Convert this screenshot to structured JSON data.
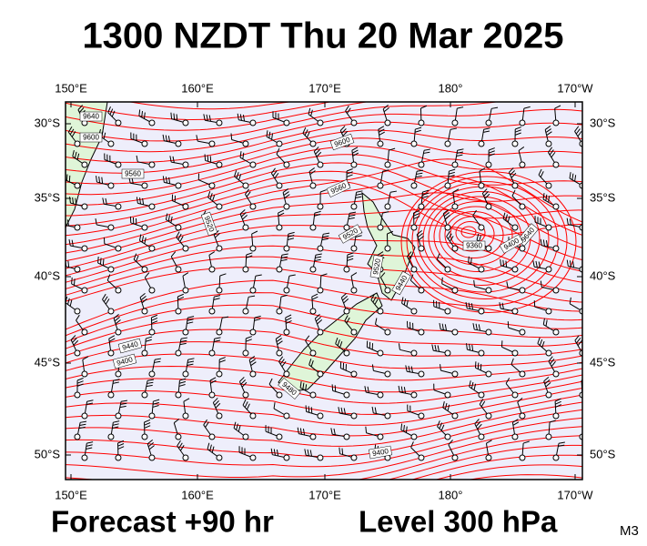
{
  "header": {
    "title": "1300 NZDT Thu 20 Mar 2025"
  },
  "map": {
    "top_labels": [
      "150°E",
      "160°E",
      "170°E",
      "180°",
      "170°W"
    ],
    "bottom_labels": [
      "150°E",
      "160°E",
      "170°E",
      "180°",
      "170°W"
    ],
    "left_labels": [
      "30°S",
      "35°S",
      "40°S",
      "45°S",
      "50°S"
    ],
    "right_labels": [
      "30°S",
      "35°S",
      "40°S",
      "45°S",
      "50°S"
    ],
    "contour_labels": [
      "9640",
      "9600",
      "9560",
      "9600",
      "9640",
      "9560",
      "9520",
      "9520",
      "9440",
      "9400",
      "9480",
      "9520",
      "9360",
      "9400",
      "9440",
      "9400"
    ]
  },
  "footer": {
    "forecast": "Forecast +90 hr",
    "level": "Level 300 hPa",
    "code": "M3"
  }
}
